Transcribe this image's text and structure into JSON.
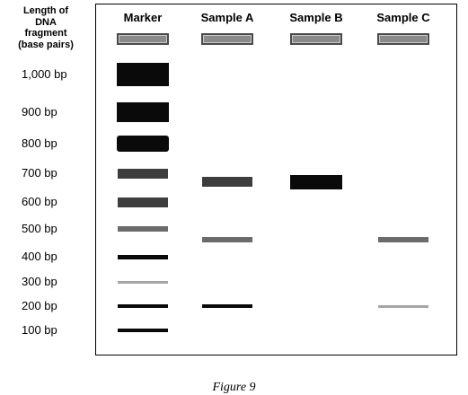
{
  "axis_label": [
    "Length of",
    "DNA",
    "fragment",
    "(base pairs)"
  ],
  "lanes": [
    {
      "label": "Marker"
    },
    {
      "label": "Sample A"
    },
    {
      "label": "Sample B"
    },
    {
      "label": "Sample C"
    }
  ],
  "size_labels": [
    {
      "text": "1,000 bp",
      "bp": 1000
    },
    {
      "text": "900 bp",
      "bp": 900
    },
    {
      "text": "800 bp",
      "bp": 800
    },
    {
      "text": "700 bp",
      "bp": 700
    },
    {
      "text": "600 bp",
      "bp": 600
    },
    {
      "text": "500 bp",
      "bp": 500
    },
    {
      "text": "400 bp",
      "bp": 400
    },
    {
      "text": "300 bp",
      "bp": 300
    },
    {
      "text": "200 bp",
      "bp": 200
    },
    {
      "text": "100 bp",
      "bp": 100
    }
  ],
  "bands": [
    {
      "lane": 0,
      "bp": 1000,
      "intensity": "black"
    },
    {
      "lane": 0,
      "bp": 900,
      "intensity": "black"
    },
    {
      "lane": 0,
      "bp": 800,
      "intensity": "black"
    },
    {
      "lane": 0,
      "bp": 700,
      "intensity": "dark-gray"
    },
    {
      "lane": 0,
      "bp": 600,
      "intensity": "dark-gray"
    },
    {
      "lane": 0,
      "bp": 500,
      "intensity": "gray"
    },
    {
      "lane": 0,
      "bp": 400,
      "intensity": "black"
    },
    {
      "lane": 0,
      "bp": 300,
      "intensity": "light-gray"
    },
    {
      "lane": 0,
      "bp": 200,
      "intensity": "black"
    },
    {
      "lane": 0,
      "bp": 100,
      "intensity": "black"
    },
    {
      "lane": 1,
      "bp": 670,
      "intensity": "dark-gray"
    },
    {
      "lane": 1,
      "bp": 460,
      "intensity": "gray"
    },
    {
      "lane": 1,
      "bp": 200,
      "intensity": "black"
    },
    {
      "lane": 2,
      "bp": 670,
      "intensity": "black"
    },
    {
      "lane": 3,
      "bp": 460,
      "intensity": "gray"
    },
    {
      "lane": 3,
      "bp": 200,
      "intensity": "light-gray"
    }
  ],
  "caption": "Figure 9"
}
